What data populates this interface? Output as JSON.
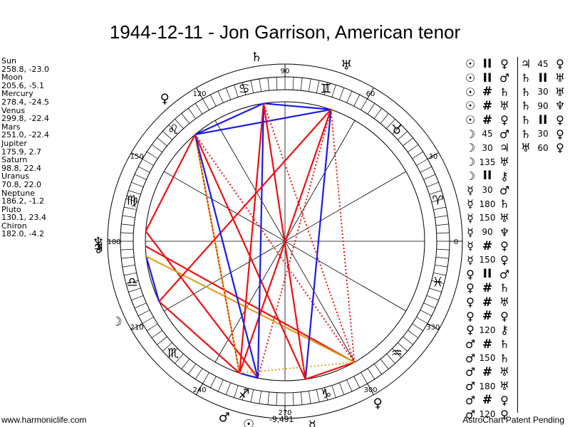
{
  "title": "1944-12-11 - Jon Garrison, American tenor",
  "positions": [
    {
      "name": "Sun",
      "value": "258.8, -23.0"
    },
    {
      "name": "Moon",
      "value": "205.6, -5.1"
    },
    {
      "name": "Mercury",
      "value": "278.4, -24.5"
    },
    {
      "name": "Venus",
      "value": "299.8, -22.4"
    },
    {
      "name": "Mars",
      "value": "251.0, -22.4"
    },
    {
      "name": "Jupiter",
      "value": "175.9, 2.7"
    },
    {
      "name": "Saturn",
      "value": "98.8, 22.4"
    },
    {
      "name": "Uranus",
      "value": "70.8, 22.0"
    },
    {
      "name": "Neptune",
      "value": "186.2, -1.2"
    },
    {
      "name": "Pluto",
      "value": "130.1, 23.4"
    },
    {
      "name": "Chiron",
      "value": "182.0, -4.2"
    }
  ],
  "wheel": {
    "degree_labels": [
      "0",
      "30",
      "60",
      "90",
      "120",
      "150",
      "180",
      "210",
      "240",
      "270",
      "300",
      "330"
    ],
    "sign_glyphs": [
      "♈",
      "♉",
      "♊",
      "♋",
      "♌",
      "♍",
      "♎",
      "♏",
      "♐",
      "♑",
      "♒",
      "♓"
    ],
    "planets": [
      {
        "name": "Saturn",
        "glyph": "♄",
        "color": "#000000"
      },
      {
        "name": "Uranus",
        "glyph": "♅",
        "color": "#000000"
      },
      {
        "name": "Pluto",
        "glyph": "♀",
        "color": "#000000"
      },
      {
        "name": "Jupiter",
        "glyph": "♃",
        "color": "#000000"
      },
      {
        "name": "Chiron",
        "glyph": "⚷",
        "color": "#000000"
      },
      {
        "name": "Neptune",
        "glyph": "♆",
        "color": "#000000"
      },
      {
        "name": "Moon",
        "glyph": "☽",
        "color": "#000000"
      },
      {
        "name": "Mars",
        "glyph": "♂",
        "color": "#000000"
      },
      {
        "name": "Sun",
        "glyph": "☉",
        "color": "#000000"
      },
      {
        "name": "Mercury",
        "glyph": "☿",
        "color": "#000000"
      },
      {
        "name": "Venus",
        "glyph": "♀",
        "color": "#000000"
      }
    ]
  },
  "aspects_col1": [
    {
      "a": "☉",
      "asp": "II",
      "b": "♀"
    },
    {
      "a": "☉",
      "asp": "II",
      "b": "♂"
    },
    {
      "a": "☉",
      "asp": "#",
      "b": "♄"
    },
    {
      "a": "☉",
      "asp": "#",
      "b": "♅"
    },
    {
      "a": "☉",
      "asp": "#",
      "b": "♀"
    },
    {
      "a": "☽",
      "asp": "45",
      "b": "♂"
    },
    {
      "a": "☽",
      "asp": "30",
      "b": "♃"
    },
    {
      "a": "☽",
      "asp": "135",
      "b": "♅"
    },
    {
      "a": "☽",
      "asp": "II",
      "b": "⚷"
    },
    {
      "a": "☿",
      "asp": "30",
      "b": "♂"
    },
    {
      "a": "☿",
      "asp": "180",
      "b": "♄"
    },
    {
      "a": "☿",
      "asp": "150",
      "b": "♅"
    },
    {
      "a": "☿",
      "asp": "90",
      "b": "♆"
    },
    {
      "a": "☿",
      "asp": "#",
      "b": "♀"
    },
    {
      "a": "☿",
      "asp": "150",
      "b": "♀"
    },
    {
      "a": "♀",
      "asp": "II",
      "b": "♂"
    },
    {
      "a": "♀",
      "asp": "#",
      "b": "♄"
    },
    {
      "a": "♀",
      "asp": "#",
      "b": "♅"
    },
    {
      "a": "♀",
      "asp": "#",
      "b": "♀"
    },
    {
      "a": "♀",
      "asp": "120",
      "b": "⚷"
    },
    {
      "a": "♂",
      "asp": "#",
      "b": "♄"
    },
    {
      "a": "♂",
      "asp": "150",
      "b": "♄"
    },
    {
      "a": "♂",
      "asp": "#",
      "b": "♅"
    },
    {
      "a": "♂",
      "asp": "180",
      "b": "♅"
    },
    {
      "a": "♂",
      "asp": "#",
      "b": "♀"
    },
    {
      "a": "♂",
      "asp": "120",
      "b": "♀"
    }
  ],
  "aspects_col2": [
    {
      "a": "♃",
      "asp": "45",
      "b": "♀"
    },
    {
      "a": "♄",
      "asp": "II",
      "b": "♅"
    },
    {
      "a": "♄",
      "asp": "30",
      "b": "♅"
    },
    {
      "a": "♄",
      "asp": "90",
      "b": "♆"
    },
    {
      "a": "♄",
      "asp": "II",
      "b": "♀"
    },
    {
      "a": "♄",
      "asp": "30",
      "b": "♀"
    },
    {
      "a": "♅",
      "asp": "60",
      "b": "♀"
    }
  ],
  "below_wheel_value": "-9,491",
  "footer_left": "www.harmoniclife.com",
  "footer_right": "AstroChart Patent Pending",
  "colors": {
    "red": "#ee1111",
    "blue": "#1a1aee",
    "gold": "#d9a520",
    "background": "#ffffff"
  }
}
